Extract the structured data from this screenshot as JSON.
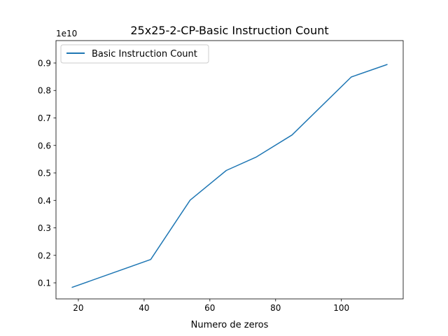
{
  "chart_data": {
    "type": "line",
    "title": "25x25-2-CP-Basic Instruction Count",
    "xlabel": "Numero de zeros",
    "ylabel": "",
    "y_offset_label": "1e10",
    "y_scale": 10000000000.0,
    "xlim": [
      13.2,
      118.8
    ],
    "ylim": [
      0.0415,
      0.9815
    ],
    "xticks": [
      20,
      40,
      60,
      80,
      100
    ],
    "yticks": [
      0.1,
      0.2,
      0.3,
      0.4,
      0.5,
      0.6,
      0.7,
      0.8,
      0.9
    ],
    "xtick_labels": [
      "20",
      "40",
      "60",
      "80",
      "100"
    ],
    "ytick_labels": [
      "0.1",
      "0.2",
      "0.3",
      "0.4",
      "0.5",
      "0.6",
      "0.7",
      "0.8",
      "0.9"
    ],
    "grid": false,
    "legend_position": "top-left",
    "series": [
      {
        "name": "Basic Instruction Count",
        "color": "#1f77b4",
        "x": [
          18,
          42,
          54,
          65,
          74,
          85,
          103,
          114
        ],
        "y": [
          0.083,
          0.185,
          0.401,
          0.509,
          0.557,
          0.638,
          0.849,
          0.895
        ]
      }
    ]
  }
}
